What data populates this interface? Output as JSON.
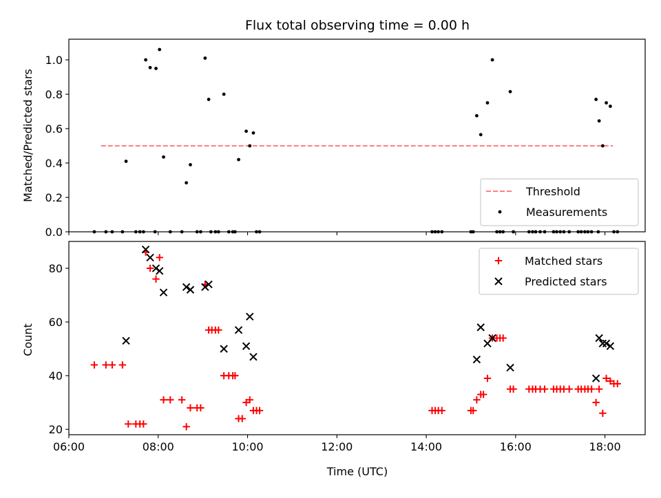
{
  "title": "Flux total observing time = 0.00 h",
  "colors": {
    "threshold": "#ff7f7f",
    "measurement": "#000000",
    "matched": "#ff0000",
    "predicted": "#000000",
    "legend_border": "#cccccc"
  },
  "chart_data": [
    {
      "type": "scatter",
      "xlabel": "",
      "ylabel": "Matched/Predicted stars",
      "x_units": "hours UTC",
      "xlim": [
        6.0,
        18.9
      ],
      "ylim": [
        0.0,
        1.12
      ],
      "xticks": [
        6,
        8,
        10,
        12,
        14,
        16,
        18
      ],
      "xtick_labels": [
        "",
        "",
        "",
        "",
        "",
        "",
        ""
      ],
      "yticks": [
        0.0,
        0.2,
        0.4,
        0.6,
        0.8,
        1.0
      ],
      "ytick_labels": [
        "0.0",
        "0.2",
        "0.4",
        "0.6",
        "0.8",
        "1.0"
      ],
      "legend_position": "lower right",
      "legend": [
        "Threshold",
        "Measurements"
      ],
      "series": [
        {
          "name": "Threshold",
          "style": "dashed-line",
          "points": [
            [
              6.72,
              0.5
            ],
            [
              18.18,
              0.5
            ]
          ]
        },
        {
          "name": "Measurements",
          "style": "dot",
          "points": [
            [
              6.57,
              0.0
            ],
            [
              6.83,
              0.0
            ],
            [
              6.97,
              0.0
            ],
            [
              7.2,
              0.0
            ],
            [
              7.5,
              0.0
            ],
            [
              7.59,
              0.0
            ],
            [
              7.67,
              0.0
            ],
            [
              7.93,
              0.0
            ],
            [
              8.27,
              0.0
            ],
            [
              8.53,
              0.0
            ],
            [
              8.87,
              0.0
            ],
            [
              8.95,
              0.0
            ],
            [
              9.18,
              0.0
            ],
            [
              9.28,
              0.0
            ],
            [
              9.35,
              0.0
            ],
            [
              9.58,
              0.0
            ],
            [
              9.67,
              0.0
            ],
            [
              9.72,
              0.0
            ],
            [
              10.2,
              0.0
            ],
            [
              10.27,
              0.0
            ],
            [
              14.13,
              0.0
            ],
            [
              14.2,
              0.0
            ],
            [
              14.27,
              0.0
            ],
            [
              14.35,
              0.0
            ],
            [
              15.0,
              0.0
            ],
            [
              15.05,
              0.0
            ],
            [
              15.58,
              0.0
            ],
            [
              15.65,
              0.0
            ],
            [
              15.72,
              0.0
            ],
            [
              15.95,
              0.0
            ],
            [
              16.3,
              0.0
            ],
            [
              16.38,
              0.0
            ],
            [
              16.45,
              0.0
            ],
            [
              16.55,
              0.0
            ],
            [
              16.65,
              0.0
            ],
            [
              16.85,
              0.0
            ],
            [
              16.92,
              0.0
            ],
            [
              17.0,
              0.0
            ],
            [
              17.08,
              0.0
            ],
            [
              17.2,
              0.0
            ],
            [
              17.4,
              0.0
            ],
            [
              17.47,
              0.0
            ],
            [
              17.55,
              0.0
            ],
            [
              17.62,
              0.0
            ],
            [
              17.7,
              0.0
            ],
            [
              17.85,
              0.0
            ],
            [
              18.2,
              0.0
            ],
            [
              18.28,
              0.0
            ],
            [
              7.28,
              0.41
            ],
            [
              7.72,
              1.0
            ],
            [
              7.82,
              0.955
            ],
            [
              7.95,
              0.95
            ],
            [
              8.03,
              1.06
            ],
            [
              8.12,
              0.435
            ],
            [
              8.63,
              0.285
            ],
            [
              8.72,
              0.39
            ],
            [
              9.05,
              1.01
            ],
            [
              9.13,
              0.77
            ],
            [
              9.47,
              0.8
            ],
            [
              9.8,
              0.42
            ],
            [
              9.97,
              0.585
            ],
            [
              10.05,
              0.5
            ],
            [
              10.13,
              0.575
            ],
            [
              15.13,
              0.675
            ],
            [
              15.22,
              0.565
            ],
            [
              15.37,
              0.75
            ],
            [
              15.48,
              1.0
            ],
            [
              15.88,
              0.815
            ],
            [
              17.8,
              0.77
            ],
            [
              17.87,
              0.645
            ],
            [
              17.95,
              0.5
            ],
            [
              18.03,
              0.75
            ],
            [
              18.12,
              0.73
            ]
          ]
        }
      ]
    },
    {
      "type": "scatter",
      "xlabel": "Time (UTC)",
      "ylabel": "Count",
      "x_units": "hours UTC",
      "xlim": [
        6.0,
        18.9
      ],
      "ylim": [
        18.0,
        90.0
      ],
      "xticks": [
        6,
        8,
        10,
        12,
        14,
        16,
        18
      ],
      "xtick_labels": [
        "06:00",
        "08:00",
        "10:00",
        "12:00",
        "14:00",
        "16:00",
        "18:00"
      ],
      "yticks": [
        20,
        40,
        60,
        80
      ],
      "ytick_labels": [
        "20",
        "40",
        "60",
        "80"
      ],
      "legend_position": "upper right",
      "legend": [
        "Matched stars",
        "Predicted stars"
      ],
      "series": [
        {
          "name": "Matched stars",
          "style": "plus",
          "points": [
            [
              6.57,
              44
            ],
            [
              6.83,
              44
            ],
            [
              6.97,
              44
            ],
            [
              7.2,
              44
            ],
            [
              7.33,
              22
            ],
            [
              7.5,
              22
            ],
            [
              7.59,
              22
            ],
            [
              7.67,
              22
            ],
            [
              7.72,
              86
            ],
            [
              7.82,
              80
            ],
            [
              7.95,
              76
            ],
            [
              8.03,
              84
            ],
            [
              8.12,
              31
            ],
            [
              8.27,
              31
            ],
            [
              8.53,
              31
            ],
            [
              8.63,
              21
            ],
            [
              8.72,
              28
            ],
            [
              8.87,
              28
            ],
            [
              8.95,
              28
            ],
            [
              9.05,
              74
            ],
            [
              9.13,
              57
            ],
            [
              9.2,
              57
            ],
            [
              9.28,
              57
            ],
            [
              9.35,
              57
            ],
            [
              9.47,
              40
            ],
            [
              9.58,
              40
            ],
            [
              9.67,
              40
            ],
            [
              9.72,
              40
            ],
            [
              9.8,
              24
            ],
            [
              9.88,
              24
            ],
            [
              9.97,
              30
            ],
            [
              10.05,
              31
            ],
            [
              10.13,
              27
            ],
            [
              10.2,
              27
            ],
            [
              10.27,
              27
            ],
            [
              14.13,
              27
            ],
            [
              14.2,
              27
            ],
            [
              14.27,
              27
            ],
            [
              14.35,
              27
            ],
            [
              15.0,
              27
            ],
            [
              15.05,
              27
            ],
            [
              15.13,
              31
            ],
            [
              15.22,
              33
            ],
            [
              15.28,
              33
            ],
            [
              15.37,
              39
            ],
            [
              15.48,
              54
            ],
            [
              15.58,
              54
            ],
            [
              15.65,
              54
            ],
            [
              15.72,
              54
            ],
            [
              15.88,
              35
            ],
            [
              15.95,
              35
            ],
            [
              16.3,
              35
            ],
            [
              16.38,
              35
            ],
            [
              16.45,
              35
            ],
            [
              16.55,
              35
            ],
            [
              16.65,
              35
            ],
            [
              16.85,
              35
            ],
            [
              16.92,
              35
            ],
            [
              17.0,
              35
            ],
            [
              17.08,
              35
            ],
            [
              17.2,
              35
            ],
            [
              17.4,
              35
            ],
            [
              17.47,
              35
            ],
            [
              17.55,
              35
            ],
            [
              17.62,
              35
            ],
            [
              17.7,
              35
            ],
            [
              17.8,
              30
            ],
            [
              17.87,
              35
            ],
            [
              17.95,
              26
            ],
            [
              18.03,
              39
            ],
            [
              18.12,
              38
            ],
            [
              18.2,
              37
            ],
            [
              18.28,
              37
            ]
          ]
        },
        {
          "name": "Predicted stars",
          "style": "x",
          "points": [
            [
              7.28,
              53
            ],
            [
              7.72,
              87
            ],
            [
              7.82,
              84
            ],
            [
              7.95,
              80
            ],
            [
              8.03,
              79
            ],
            [
              8.12,
              71
            ],
            [
              8.63,
              73
            ],
            [
              8.72,
              72
            ],
            [
              9.05,
              73
            ],
            [
              9.13,
              74
            ],
            [
              9.47,
              50
            ],
            [
              9.8,
              57
            ],
            [
              9.97,
              51
            ],
            [
              10.05,
              62
            ],
            [
              10.13,
              47
            ],
            [
              15.13,
              46
            ],
            [
              15.22,
              58
            ],
            [
              15.37,
              52
            ],
            [
              15.48,
              54
            ],
            [
              15.88,
              43
            ],
            [
              17.8,
              39
            ],
            [
              17.87,
              54
            ],
            [
              17.95,
              52
            ],
            [
              18.03,
              52
            ],
            [
              18.12,
              51
            ]
          ]
        }
      ]
    }
  ]
}
